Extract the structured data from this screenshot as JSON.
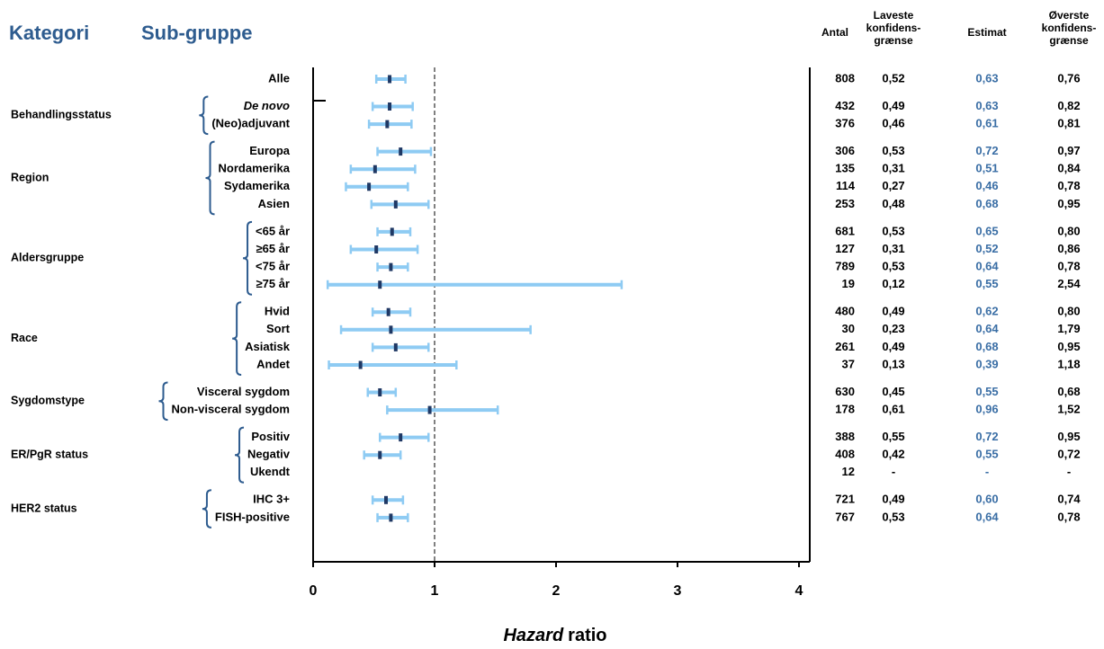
{
  "chart_data": {
    "type": "forest",
    "title_category": "Kategori",
    "title_subgroup": "Sub-gruppe",
    "column_headers": {
      "n": [
        "Antal"
      ],
      "lower": [
        "Laveste",
        "konfidens-",
        "grænse"
      ],
      "estimate": [
        "Estimat"
      ],
      "upper": [
        "Øverste",
        "konfidens-",
        "grænse"
      ]
    },
    "xlabel": {
      "italic": "Hazard",
      "regular": "ratio"
    },
    "xlim": [
      0,
      4
    ],
    "xticks": [
      0,
      1,
      2,
      3,
      4
    ],
    "reference_line": 1,
    "ci_color": "#8ecbf3",
    "estimate_color": "#1f3864",
    "estimate_text_color": "#3a6ea5",
    "groups": [
      {
        "name": null,
        "rows": [
          {
            "label": "Alle",
            "n": 808,
            "lower": {
              "value": 0.52,
              "label": "0,52"
            },
            "estimate": {
              "value": 0.63,
              "label": "0,63"
            },
            "upper": {
              "value": 0.76,
              "label": "0,76"
            }
          }
        ]
      },
      {
        "name": "Behandlingsstatus",
        "rows": [
          {
            "label": "De novo",
            "italic": true,
            "n": 432,
            "lower": {
              "value": 0.49,
              "label": "0,49"
            },
            "estimate": {
              "value": 0.63,
              "label": "0,63"
            },
            "upper": {
              "value": 0.82,
              "label": "0,82"
            }
          },
          {
            "label": "(Neo)adjuvant",
            "n": 376,
            "lower": {
              "value": 0.46,
              "label": "0,46"
            },
            "estimate": {
              "value": 0.61,
              "label": "0,61"
            },
            "upper": {
              "value": 0.81,
              "label": "0,81"
            }
          }
        ]
      },
      {
        "name": "Region",
        "rows": [
          {
            "label": "Europa",
            "n": 306,
            "lower": {
              "value": 0.53,
              "label": "0,53"
            },
            "estimate": {
              "value": 0.72,
              "label": "0,72"
            },
            "upper": {
              "value": 0.97,
              "label": "0,97"
            }
          },
          {
            "label": "Nordamerika",
            "n": 135,
            "lower": {
              "value": 0.31,
              "label": "0,31"
            },
            "estimate": {
              "value": 0.51,
              "label": "0,51"
            },
            "upper": {
              "value": 0.84,
              "label": "0,84"
            }
          },
          {
            "label": "Sydamerika",
            "n": 114,
            "lower": {
              "value": 0.27,
              "label": "0,27"
            },
            "estimate": {
              "value": 0.46,
              "label": "0,46"
            },
            "upper": {
              "value": 0.78,
              "label": "0,78"
            }
          },
          {
            "label": "Asien",
            "n": 253,
            "lower": {
              "value": 0.48,
              "label": "0,48"
            },
            "estimate": {
              "value": 0.68,
              "label": "0,68"
            },
            "upper": {
              "value": 0.95,
              "label": "0,95"
            }
          }
        ]
      },
      {
        "name": "Aldersgruppe",
        "rows": [
          {
            "label": "<65 år",
            "n": 681,
            "lower": {
              "value": 0.53,
              "label": "0,53"
            },
            "estimate": {
              "value": 0.65,
              "label": "0,65"
            },
            "upper": {
              "value": 0.8,
              "label": "0,80"
            }
          },
          {
            "label": "≥65 år",
            "n": 127,
            "lower": {
              "value": 0.31,
              "label": "0,31"
            },
            "estimate": {
              "value": 0.52,
              "label": "0,52"
            },
            "upper": {
              "value": 0.86,
              "label": "0,86"
            }
          },
          {
            "label": "<75 år",
            "n": 789,
            "lower": {
              "value": 0.53,
              "label": "0,53"
            },
            "estimate": {
              "value": 0.64,
              "label": "0,64"
            },
            "upper": {
              "value": 0.78,
              "label": "0,78"
            }
          },
          {
            "label": "≥75 år",
            "n": 19,
            "lower": {
              "value": 0.12,
              "label": "0,12"
            },
            "estimate": {
              "value": 0.55,
              "label": "0,55"
            },
            "upper": {
              "value": 2.54,
              "label": "2,54"
            }
          }
        ]
      },
      {
        "name": "Race",
        "rows": [
          {
            "label": "Hvid",
            "n": 480,
            "lower": {
              "value": 0.49,
              "label": "0,49"
            },
            "estimate": {
              "value": 0.62,
              "label": "0,62"
            },
            "upper": {
              "value": 0.8,
              "label": "0,80"
            }
          },
          {
            "label": "Sort",
            "n": 30,
            "lower": {
              "value": 0.23,
              "label": "0,23"
            },
            "estimate": {
              "value": 0.64,
              "label": "0,64"
            },
            "upper": {
              "value": 1.79,
              "label": "1,79"
            }
          },
          {
            "label": "Asiatisk",
            "n": 261,
            "lower": {
              "value": 0.49,
              "label": "0,49"
            },
            "estimate": {
              "value": 0.68,
              "label": "0,68"
            },
            "upper": {
              "value": 0.95,
              "label": "0,95"
            }
          },
          {
            "label": "Andet",
            "n": 37,
            "lower": {
              "value": 0.13,
              "label": "0,13"
            },
            "estimate": {
              "value": 0.39,
              "label": "0,39"
            },
            "upper": {
              "value": 1.18,
              "label": "1,18"
            }
          }
        ]
      },
      {
        "name": "Sygdomstype",
        "rows": [
          {
            "label": "Visceral sygdom",
            "n": 630,
            "lower": {
              "value": 0.45,
              "label": "0,45"
            },
            "estimate": {
              "value": 0.55,
              "label": "0,55"
            },
            "upper": {
              "value": 0.68,
              "label": "0,68"
            }
          },
          {
            "label": "Non-visceral sygdom",
            "n": 178,
            "lower": {
              "value": 0.61,
              "label": "0,61"
            },
            "estimate": {
              "value": 0.96,
              "label": "0,96"
            },
            "upper": {
              "value": 1.52,
              "label": "1,52"
            }
          }
        ]
      },
      {
        "name": "ER/PgR status",
        "rows": [
          {
            "label": "Positiv",
            "n": 388,
            "lower": {
              "value": 0.55,
              "label": "0,55"
            },
            "estimate": {
              "value": 0.72,
              "label": "0,72"
            },
            "upper": {
              "value": 0.95,
              "label": "0,95"
            }
          },
          {
            "label": "Negativ",
            "n": 408,
            "lower": {
              "value": 0.42,
              "label": "0,42"
            },
            "estimate": {
              "value": 0.55,
              "label": "0,55"
            },
            "upper": {
              "value": 0.72,
              "label": "0,72"
            }
          },
          {
            "label": "Ukendt",
            "n": 12,
            "lower": {
              "value": null,
              "label": "-"
            },
            "estimate": {
              "value": null,
              "label": "-"
            },
            "upper": {
              "value": null,
              "label": "-"
            }
          }
        ]
      },
      {
        "name": "HER2 status",
        "rows": [
          {
            "label": "IHC 3+",
            "n": 721,
            "lower": {
              "value": 0.49,
              "label": "0,49"
            },
            "estimate": {
              "value": 0.6,
              "label": "0,60"
            },
            "upper": {
              "value": 0.74,
              "label": "0,74"
            }
          },
          {
            "label": "FISH-positive",
            "n": 767,
            "lower": {
              "value": 0.53,
              "label": "0,53"
            },
            "estimate": {
              "value": 0.64,
              "label": "0,64"
            },
            "upper": {
              "value": 0.78,
              "label": "0,78"
            }
          }
        ]
      }
    ]
  }
}
